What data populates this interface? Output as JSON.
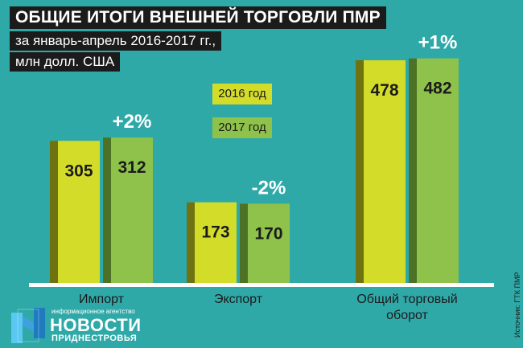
{
  "title": {
    "line1": "ОБЩИЕ ИТОГИ ВНЕШНЕЙ ТОРГОВЛИ ПМР",
    "line2": "за январь-апрель 2016-2017 гг.,",
    "line3": "млн долл. США"
  },
  "legend": [
    "2016 год",
    "2017 год"
  ],
  "colors": {
    "background": "#2fa9a8",
    "series_2016": "#d4dc2a",
    "series_2017": "#8ec24b",
    "title_bg": "#1b1b1b"
  },
  "chart_data": {
    "type": "bar",
    "title": "ОБЩИЕ ИТОГИ ВНЕШНЕЙ ТОРГОВЛИ ПМР",
    "subtitle": "за январь-апрель 2016-2017 гг., млн долл. США",
    "categories": [
      [
        "Импорт"
      ],
      [
        "Экспорт"
      ],
      [
        "Общий торговый",
        "оборот"
      ]
    ],
    "series": [
      {
        "name": "2016 год",
        "values": [
          305,
          173,
          478
        ]
      },
      {
        "name": "2017 год",
        "values": [
          312,
          170,
          482
        ]
      }
    ],
    "changes": [
      "+2%",
      "-2%",
      "+1%"
    ],
    "ylim": [
      0,
      520
    ],
    "grid": false,
    "legend_position": "top-center"
  },
  "branding": {
    "agency": "информационное агентство",
    "name": "НОВОСТИ",
    "subname": "ПРИДНЕСТРОВЬЯ"
  },
  "source": "Источник: ГТК ПМР"
}
